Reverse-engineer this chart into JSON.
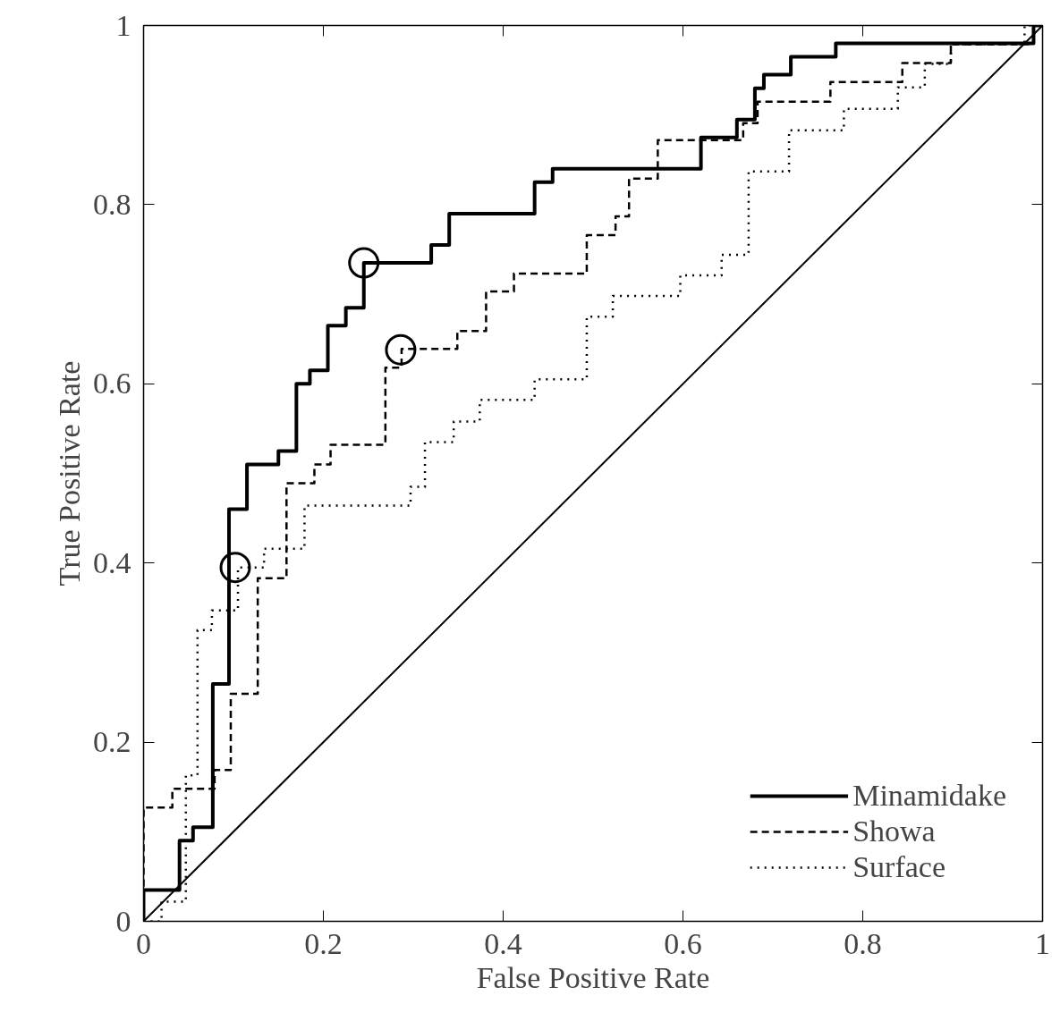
{
  "chart_data": {
    "type": "line",
    "xlabel": "False Positive Rate",
    "ylabel": "True Positive Rate",
    "xlim": [
      0,
      1
    ],
    "ylim": [
      0,
      1
    ],
    "xticks": [
      0,
      0.2,
      0.4,
      0.6,
      0.8,
      1
    ],
    "yticks": [
      0,
      0.2,
      0.4,
      0.6,
      0.8,
      1
    ],
    "grid": false,
    "legend": "bottom right",
    "marker": "none",
    "series": [
      {
        "name": "Minamidake",
        "color": "#000000",
        "line_style": "solid",
        "x": [
          0,
          0,
          0.04,
          0.04,
          0.055,
          0.055,
          0.077,
          0.077,
          0.095,
          0.095,
          0.115,
          0.115,
          0.15,
          0.15,
          0.17,
          0.17,
          0.185,
          0.185,
          0.205,
          0.205,
          0.225,
          0.225,
          0.245,
          0.245,
          0.32,
          0.32,
          0.34,
          0.34,
          0.435,
          0.435,
          0.455,
          0.455,
          0.62,
          0.62,
          0.66,
          0.66,
          0.68,
          0.68,
          0.69,
          0.69,
          0.72,
          0.72,
          0.77,
          0.77,
          0.99,
          0.99,
          1
        ],
        "values": [
          0,
          0.035,
          0.035,
          0.09,
          0.09,
          0.105,
          0.105,
          0.265,
          0.265,
          0.46,
          0.46,
          0.51,
          0.51,
          0.525,
          0.525,
          0.6,
          0.6,
          0.615,
          0.615,
          0.665,
          0.665,
          0.685,
          0.685,
          0.735,
          0.735,
          0.755,
          0.755,
          0.79,
          0.79,
          0.825,
          0.825,
          0.84,
          0.84,
          0.875,
          0.875,
          0.895,
          0.895,
          0.93,
          0.93,
          0.945,
          0.945,
          0.965,
          0.965,
          0.98,
          0.98,
          1,
          1
        ]
      },
      {
        "name": "Showa",
        "color": "#000000",
        "line_style": "dashed",
        "x": [
          0,
          0,
          0.032,
          0.032,
          0.079,
          0.079,
          0.097,
          0.097,
          0.127,
          0.127,
          0.159,
          0.159,
          0.19,
          0.19,
          0.208,
          0.208,
          0.269,
          0.269,
          0.287,
          0.287,
          0.349,
          0.349,
          0.381,
          0.381,
          0.412,
          0.412,
          0.493,
          0.493,
          0.525,
          0.525,
          0.54,
          0.54,
          0.572,
          0.572,
          0.667,
          0.667,
          0.683,
          0.683,
          0.764,
          0.764,
          0.844,
          0.844,
          0.898,
          0.898,
          0.99,
          0.99,
          1
        ],
        "values": [
          0,
          0.127,
          0.127,
          0.148,
          0.148,
          0.169,
          0.169,
          0.254,
          0.254,
          0.383,
          0.383,
          0.489,
          0.489,
          0.51,
          0.51,
          0.532,
          0.532,
          0.618,
          0.618,
          0.639,
          0.639,
          0.659,
          0.659,
          0.703,
          0.703,
          0.723,
          0.723,
          0.766,
          0.766,
          0.787,
          0.787,
          0.829,
          0.829,
          0.872,
          0.872,
          0.891,
          0.891,
          0.915,
          0.915,
          0.937,
          0.937,
          0.958,
          0.958,
          0.979,
          0.979,
          1,
          1
        ]
      },
      {
        "name": "Surface",
        "color": "#000000",
        "line_style": "dotted",
        "x": [
          0,
          0.02,
          0.02,
          0.047,
          0.047,
          0.06,
          0.06,
          0.076,
          0.076,
          0.105,
          0.105,
          0.134,
          0.134,
          0.179,
          0.179,
          0.297,
          0.297,
          0.313,
          0.313,
          0.345,
          0.345,
          0.374,
          0.374,
          0.435,
          0.435,
          0.493,
          0.493,
          0.522,
          0.522,
          0.597,
          0.597,
          0.643,
          0.643,
          0.673,
          0.673,
          0.718,
          0.718,
          0.779,
          0.779,
          0.839,
          0.839,
          0.869,
          0.869,
          0.898,
          0.898,
          0.98,
          0.98,
          1
        ],
        "values": [
          0,
          0,
          0.022,
          0.022,
          0.163,
          0.163,
          0.325,
          0.325,
          0.347,
          0.347,
          0.395,
          0.395,
          0.416,
          0.416,
          0.464,
          0.464,
          0.485,
          0.485,
          0.535,
          0.535,
          0.558,
          0.558,
          0.582,
          0.582,
          0.605,
          0.605,
          0.675,
          0.675,
          0.698,
          0.698,
          0.721,
          0.721,
          0.744,
          0.744,
          0.837,
          0.837,
          0.883,
          0.883,
          0.907,
          0.907,
          0.931,
          0.931,
          0.957,
          0.957,
          0.979,
          0.979,
          1,
          1
        ]
      },
      {
        "color": "#000000",
        "line_style": "solid",
        "x": [
          0,
          1
        ],
        "values": [
          0,
          1
        ]
      },
      {
        "type": "scatter",
        "marker": "circle",
        "color": "#000000",
        "x": [
          0.102,
          0.245,
          0.286
        ],
        "values": [
          0.395,
          0.735,
          0.638
        ]
      }
    ]
  }
}
